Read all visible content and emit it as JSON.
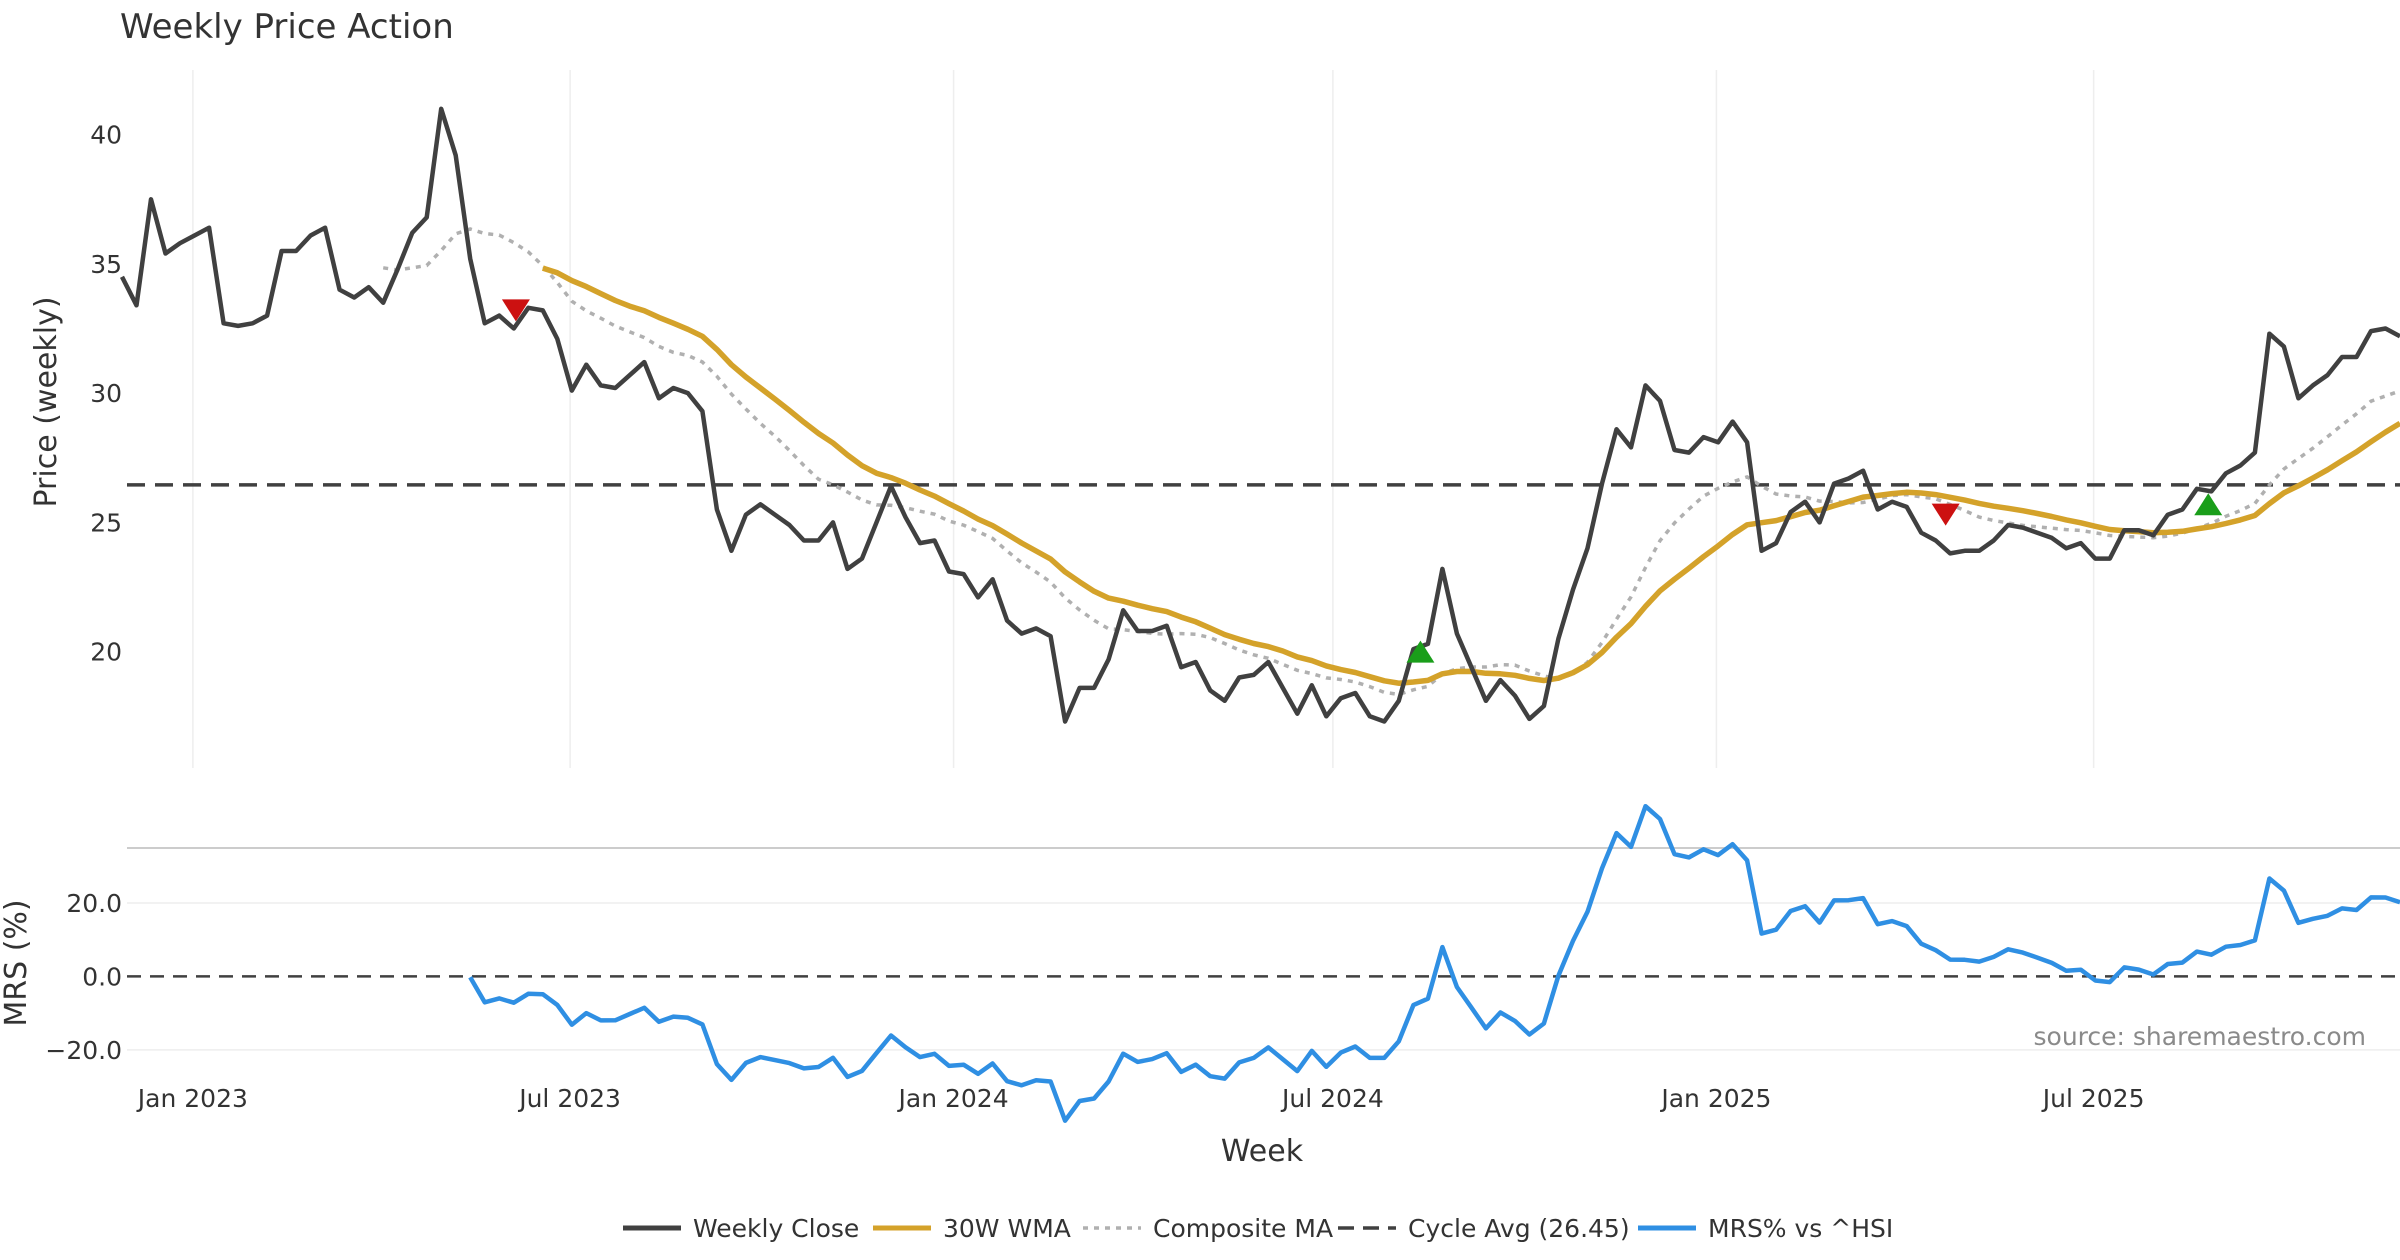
{
  "chart_data": {
    "type": "line",
    "title": "Weekly Price Action",
    "xlabel": "Week",
    "x_tick_labels": [
      "Jan 2023",
      "Jul 2023",
      "Jan 2024",
      "Jul 2024",
      "Jan 2025",
      "Jul 2025"
    ],
    "price_panel": {
      "ylabel": "Price (weekly)",
      "ylim": [
        15.5,
        42.5
      ],
      "yticks": [
        "20",
        "25",
        "30",
        "35",
        "40"
      ],
      "cycle_avg": 26.45,
      "weekly_close": [
        34.5,
        33.4,
        37.5,
        35.4,
        35.8,
        36.1,
        36.4,
        32.7,
        32.6,
        32.7,
        33.0,
        35.5,
        35.5,
        36.1,
        36.4,
        34.0,
        33.7,
        34.1,
        33.5,
        34.8,
        36.2,
        36.8,
        41.0,
        39.2,
        35.2,
        32.7,
        33.0,
        32.5,
        33.3,
        33.2,
        32.1,
        30.1,
        31.1,
        30.3,
        30.2,
        30.7,
        31.2,
        29.8,
        30.2,
        30.0,
        29.3,
        25.5,
        23.9,
        25.3,
        25.7,
        25.3,
        24.9,
        24.3,
        24.3,
        25.0,
        23.2,
        23.6,
        25.0,
        26.4,
        25.2,
        24.2,
        24.3,
        23.1,
        23.0,
        22.1,
        22.8,
        21.2,
        20.7,
        20.9,
        20.6,
        17.3,
        18.6,
        18.6,
        19.7,
        21.6,
        20.8,
        20.8,
        21.0,
        19.4,
        19.6,
        18.5,
        18.1,
        19.0,
        19.1,
        19.6,
        18.6,
        17.6,
        18.7,
        17.5,
        18.2,
        18.4,
        17.5,
        17.3,
        18.1,
        20.1,
        20.3,
        23.2,
        20.7,
        19.4,
        18.1,
        18.9,
        18.3,
        17.4,
        17.9,
        20.5,
        22.4,
        24.0,
        26.5,
        28.6,
        27.9,
        30.3,
        29.7,
        27.8,
        27.7,
        28.3,
        28.1,
        28.9,
        28.1,
        23.9,
        24.2,
        25.4,
        25.8,
        25.0,
        26.5,
        26.7,
        27.0,
        25.5,
        25.8,
        25.6,
        24.6,
        24.3,
        23.8,
        23.9,
        23.9,
        24.3,
        24.9,
        24.8,
        24.6,
        24.4,
        24.0,
        24.2,
        23.6,
        23.6,
        24.7,
        24.7,
        24.5,
        25.3,
        25.5,
        26.3,
        26.2,
        26.9,
        27.2,
        27.7,
        32.3,
        31.8,
        29.8,
        30.3,
        30.7,
        31.4,
        31.4,
        32.4,
        32.5,
        32.2
      ]
    },
    "mrs_panel": {
      "ylabel": "MRS (%)",
      "ylim": [
        -25.5,
        35
      ],
      "yticks": [
        "20.0",
        "0.0",
        "−20.0"
      ],
      "zero_line": 0,
      "series_name": "MRS% vs ^HSI"
    },
    "series": [
      {
        "name": "Weekly Close",
        "color": "#404040",
        "style": "solid"
      },
      {
        "name": "30W WMA",
        "color": "#d4a22a",
        "style": "solid"
      },
      {
        "name": "Composite MA",
        "color": "#b0b0b0",
        "style": "dotted"
      },
      {
        "name": "Cycle Avg (26.45)",
        "color": "#404040",
        "style": "dashed"
      },
      {
        "name": "MRS% vs ^HSI",
        "color": "#2f8fe3",
        "style": "solid"
      }
    ],
    "sell_signals": [
      {
        "date": "2023-06-05",
        "value": 33.2
      },
      {
        "date": "2025-04-21",
        "value": 25.3
      }
    ],
    "buy_signals": [
      {
        "date": "2024-08-12",
        "value": 20.0
      },
      {
        "date": "2025-08-25",
        "value": 25.7
      }
    ],
    "annotation": "source: sharemaestro.com"
  }
}
